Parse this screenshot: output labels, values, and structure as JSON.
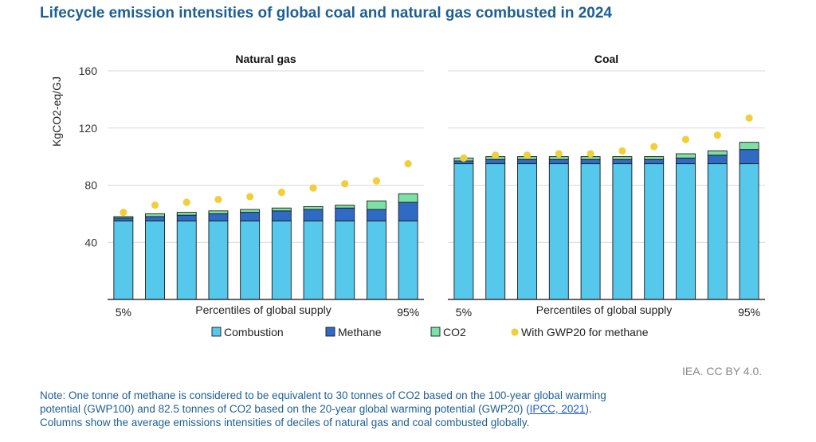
{
  "title": "Lifecycle emission intensities of global coal and natural gas combusted in 2024",
  "colors": {
    "combustion": "#55c8ec",
    "methane": "#2f6bc4",
    "co2": "#7ee0a4",
    "gwp20": "#f1cf3a",
    "grid": "#d9d9d9",
    "axis": "#333333"
  },
  "chart_data": {
    "type": "bar",
    "ylabel": "KgCO2-eq/GJ",
    "ylim": [
      0,
      160
    ],
    "yticks": [
      "40",
      "80",
      "120",
      "160"
    ],
    "grid": true,
    "legend": {
      "position": "bottom",
      "items": [
        {
          "key": "combustion",
          "label": "Combustion"
        },
        {
          "key": "methane",
          "label": "Methane"
        },
        {
          "key": "co2",
          "label": "CO2"
        },
        {
          "key": "gwp20",
          "label": "With GWP20 for methane"
        }
      ]
    },
    "panels": [
      {
        "title": "Natural gas",
        "xlabel": "Percentiles of global supply",
        "x_start_label": "5%",
        "x_end_label": "95%",
        "combustion": [
          55,
          55,
          55,
          55,
          55,
          55,
          55,
          55,
          55,
          55
        ],
        "methane": [
          2,
          3,
          4,
          5,
          6,
          7,
          8,
          9,
          8,
          13
        ],
        "co2": [
          1,
          2,
          2,
          2,
          2,
          2,
          2,
          2,
          6,
          6
        ],
        "gwp20": [
          61,
          66,
          68,
          70,
          72,
          75,
          78,
          81,
          83,
          95
        ]
      },
      {
        "title": "Coal",
        "xlabel": "Percentiles of global supply",
        "x_start_label": "5%",
        "x_end_label": "95%",
        "combustion": [
          95,
          95,
          95,
          95,
          95,
          95,
          95,
          95,
          95,
          95
        ],
        "methane": [
          2,
          3,
          3,
          3,
          3,
          3,
          3,
          4,
          6,
          10
        ],
        "co2": [
          2,
          2,
          2,
          2,
          2,
          2,
          2,
          3,
          3,
          5
        ],
        "gwp20": [
          99,
          101,
          101,
          102,
          102,
          104,
          107,
          112,
          115,
          127
        ]
      }
    ]
  },
  "source": "IEA. CC BY 4.0.",
  "note": {
    "line1": "Note: One tonne of methane is considered to be equivalent to 30 tonnes of CO2 based on the 100-year global warming",
    "line2_pre": "potential (GWP100) and 82.5 tonnes of CO2 based on the 20-year global warming potential (GWP20) (",
    "link": "IPCC, 2021",
    "line2_post": ").",
    "line3": "Columns show the average emissions intensities of deciles of natural gas and coal combusted globally."
  }
}
